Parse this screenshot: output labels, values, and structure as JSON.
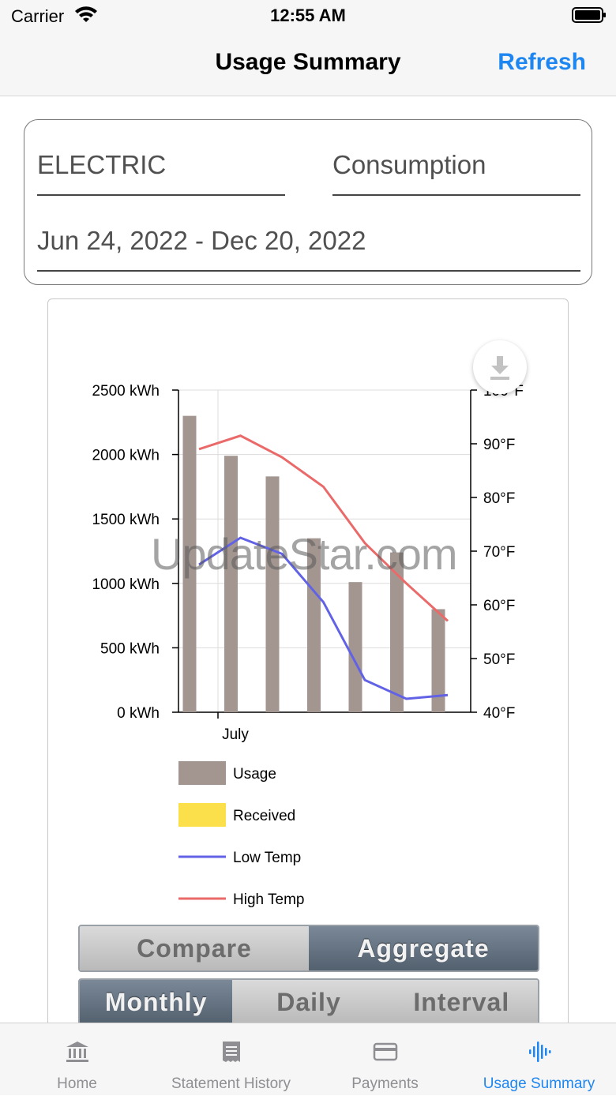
{
  "status_bar": {
    "carrier": "Carrier",
    "time": "12:55 AM"
  },
  "nav": {
    "title": "Usage Summary",
    "refresh_label": "Refresh"
  },
  "filters": {
    "service": "ELECTRIC",
    "measure": "Consumption",
    "date_range": "Jun 24, 2022 - Dec 20, 2022"
  },
  "watermark": "UpdateStar.com",
  "chart_data": {
    "type": "bar",
    "x_tick_labels": [
      "July"
    ],
    "y_left": {
      "ticks": [
        "0 kWh",
        "500 kWh",
        "1000 kWh",
        "1500 kWh",
        "2000 kWh",
        "2500 kWh"
      ],
      "range": [
        0,
        2500
      ]
    },
    "y_right": {
      "ticks": [
        "40°F",
        "50°F",
        "60°F",
        "70°F",
        "80°F",
        "90°F",
        "100°F"
      ],
      "range": [
        40,
        100
      ]
    },
    "series": [
      {
        "name": "Usage",
        "kind": "bar",
        "axis": "left",
        "color": "#a39690",
        "values": [
          2300,
          1990,
          1830,
          1350,
          1010,
          1240,
          800
        ]
      },
      {
        "name": "Received",
        "kind": "bar",
        "axis": "left",
        "color": "#fbdf4b",
        "values": []
      },
      {
        "name": "Low Temp",
        "kind": "line",
        "axis": "right",
        "color": "#6262e6",
        "values": [
          67.5,
          72.5,
          69.5,
          60.5,
          46,
          42.5,
          43.2
        ]
      },
      {
        "name": "High Temp",
        "kind": "line",
        "axis": "right",
        "color": "#ea6a6a",
        "values": [
          89,
          91.5,
          87.5,
          82,
          71.5,
          64,
          57
        ]
      }
    ],
    "grid": true,
    "legend_position": "bottom-left"
  },
  "toggles": {
    "mode": [
      {
        "label": "Compare",
        "active": false
      },
      {
        "label": "Aggregate",
        "active": true
      }
    ],
    "period": [
      {
        "label": "Monthly",
        "active": true
      },
      {
        "label": "Daily",
        "active": false
      },
      {
        "label": "Interval",
        "active": false
      }
    ]
  },
  "tabs": [
    {
      "label": "Home",
      "icon": "bank-icon",
      "active": false
    },
    {
      "label": "Statement History",
      "icon": "receipt-icon",
      "active": false
    },
    {
      "label": "Payments",
      "icon": "credit-card-icon",
      "active": false
    },
    {
      "label": "Usage Summary",
      "icon": "waveform-icon",
      "active": true
    }
  ]
}
